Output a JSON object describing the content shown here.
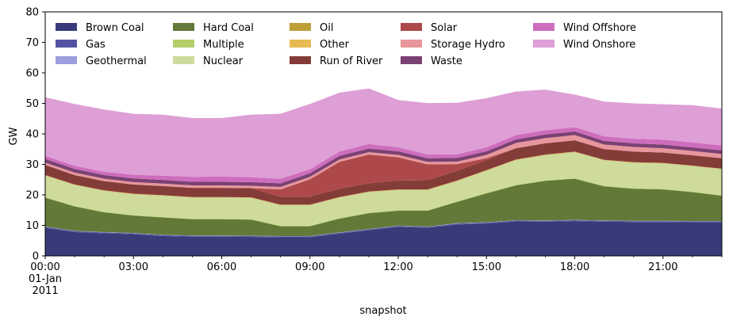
{
  "chart_data": {
    "type": "area",
    "stacked": true,
    "title": "",
    "xlabel": "snapshot",
    "ylabel": "GW",
    "ylim": [
      0,
      80
    ],
    "yticks": [
      0,
      10,
      20,
      30,
      40,
      50,
      60,
      70,
      80
    ],
    "x_hours": [
      0,
      1,
      2,
      3,
      4,
      5,
      6,
      7,
      8,
      9,
      10,
      11,
      12,
      13,
      14,
      15,
      16,
      17,
      18,
      19,
      20,
      21,
      22,
      23
    ],
    "xticks": [
      {
        "hour": 0,
        "lines": [
          "00:00",
          "01-Jan",
          "2011"
        ]
      },
      {
        "hour": 3,
        "lines": [
          "03:00"
        ]
      },
      {
        "hour": 6,
        "lines": [
          "06:00"
        ]
      },
      {
        "hour": 9,
        "lines": [
          "09:00"
        ]
      },
      {
        "hour": 12,
        "lines": [
          "12:00"
        ]
      },
      {
        "hour": 15,
        "lines": [
          "15:00"
        ]
      },
      {
        "hour": 18,
        "lines": [
          "18:00"
        ]
      },
      {
        "hour": 21,
        "lines": [
          "21:00"
        ]
      }
    ],
    "legend_position": "top-left, 5 columns",
    "series": [
      {
        "name": "Brown Coal",
        "color": "#393b79",
        "values": [
          9.2,
          7.8,
          7.4,
          7.1,
          6.5,
          6.3,
          6.3,
          6.2,
          6.1,
          6.1,
          7.3,
          8.4,
          9.5,
          9.2,
          10.3,
          10.6,
          11.3,
          11.2,
          11.4,
          11.2,
          11.1,
          11.1,
          11,
          11
        ]
      },
      {
        "name": "Gas",
        "color": "#5254a3",
        "values": [
          0.3,
          0.3,
          0.3,
          0.3,
          0.3,
          0.3,
          0.3,
          0.3,
          0.3,
          0.3,
          0.3,
          0.3,
          0.3,
          0.3,
          0.3,
          0.3,
          0.3,
          0.3,
          0.3,
          0.3,
          0.3,
          0.3,
          0.3,
          0.3
        ]
      },
      {
        "name": "Geothermal",
        "color": "#9c9ede",
        "values": [
          0.1,
          0.1,
          0.1,
          0.1,
          0.1,
          0.1,
          0.1,
          0.1,
          0.1,
          0.1,
          0.1,
          0.1,
          0.1,
          0.1,
          0.1,
          0.1,
          0.1,
          0.1,
          0.1,
          0.1,
          0.1,
          0.1,
          0.1,
          0.1
        ]
      },
      {
        "name": "Hard Coal",
        "color": "#637939",
        "values": [
          9.5,
          8,
          6.5,
          5.7,
          5.7,
          5.3,
          5.3,
          5.3,
          3.2,
          3.2,
          4.5,
          5.2,
          4.9,
          5.2,
          7,
          9.5,
          11.4,
          13,
          13.5,
          11.2,
          10.5,
          10.3,
          9.5,
          8.3
        ]
      },
      {
        "name": "Multiple",
        "color": "#b5cf6b",
        "values": [
          0.2,
          0.2,
          0.2,
          0.2,
          0.2,
          0.2,
          0.2,
          0.2,
          0.2,
          0.2,
          0.2,
          0.2,
          0.2,
          0.2,
          0.2,
          0.2,
          0.2,
          0.2,
          0.2,
          0.2,
          0.2,
          0.2,
          0.2,
          0.2
        ]
      },
      {
        "name": "Nuclear",
        "color": "#cedb9c",
        "values": [
          7,
          6.8,
          6.8,
          6.8,
          6.9,
          6.9,
          6.9,
          6.9,
          6.7,
          6.7,
          6.7,
          6.7,
          6.6,
          6.6,
          6.6,
          7.2,
          8.1,
          8.2,
          8.5,
          8.3,
          8.3,
          8.3,
          8.3,
          8.5
        ]
      },
      {
        "name": "Oil",
        "color": "#bd9e39",
        "values": [
          0.1,
          0.1,
          0.1,
          0.1,
          0.1,
          0.1,
          0.1,
          0.1,
          0.1,
          0.1,
          0.1,
          0.1,
          0.1,
          0.1,
          0.1,
          0.1,
          0.1,
          0.1,
          0.1,
          0.1,
          0.1,
          0.1,
          0.1,
          0.1
        ]
      },
      {
        "name": "Other",
        "color": "#e7ba52",
        "values": [
          0.1,
          0.1,
          0.1,
          0.1,
          0.1,
          0.1,
          0.1,
          0.1,
          0.1,
          0.1,
          0.1,
          0.1,
          0.1,
          0.1,
          0.1,
          0.1,
          0.1,
          0.1,
          0.1,
          0.1,
          0.1,
          0.1,
          0.1,
          0.1
        ]
      },
      {
        "name": "Run of River",
        "color": "#843c39",
        "values": [
          3.3,
          3.1,
          3,
          3,
          3,
          3,
          3,
          3,
          2.6,
          2.6,
          2.7,
          2.7,
          2.9,
          3,
          3.2,
          3.3,
          3.7,
          3.7,
          3.7,
          3.5,
          3.5,
          3.4,
          3.4,
          3.4
        ]
      },
      {
        "name": "Solar",
        "color": "#ad494a",
        "values": [
          0,
          0,
          0,
          0,
          0,
          0,
          0,
          0,
          2.4,
          5.7,
          8.8,
          9.4,
          7.6,
          5.2,
          2.2,
          0.6,
          0,
          0,
          0,
          0,
          0,
          0,
          0,
          0
        ]
      },
      {
        "name": "Storage Hydro",
        "color": "#e7969c",
        "values": [
          0.8,
          0.8,
          0.8,
          0.8,
          0.8,
          0.8,
          0.8,
          0.8,
          0.8,
          0.8,
          0.8,
          0.8,
          0.8,
          0.8,
          0.8,
          1.1,
          1.7,
          1.7,
          1.7,
          1.5,
          1.5,
          1.4,
          1.4,
          1.4
        ]
      },
      {
        "name": "Waste",
        "color": "#7b4173",
        "values": [
          1.2,
          1.2,
          1.2,
          1.2,
          1.2,
          1.2,
          1.2,
          1.2,
          1.2,
          1.2,
          1.2,
          1.2,
          1.2,
          1.2,
          1.2,
          1.2,
          1.2,
          1.2,
          1.2,
          1.2,
          1.2,
          1.2,
          1.2,
          1.2
        ]
      },
      {
        "name": "Wind Offshore",
        "color": "#ce6dbd",
        "values": [
          1,
          1,
          1.1,
          1.2,
          1.4,
          1.6,
          1.7,
          1.6,
          1.5,
          1.3,
          1.4,
          1.5,
          1.3,
          1.2,
          1.2,
          1.3,
          1.4,
          1.4,
          1.4,
          1.5,
          1.5,
          1.6,
          1.6,
          1.6
        ]
      },
      {
        "name": "Wind Onshore",
        "color": "#de9ed6",
        "values": [
          19.2,
          20.3,
          20.4,
          20,
          20,
          19.3,
          19.2,
          20.5,
          21.3,
          21.4,
          19.3,
          18.2,
          15.5,
          16.9,
          16.9,
          16.1,
          14.3,
          13.3,
          10.7,
          11.4,
          11.6,
          11.6,
          12.2,
          12.1
        ]
      }
    ]
  }
}
